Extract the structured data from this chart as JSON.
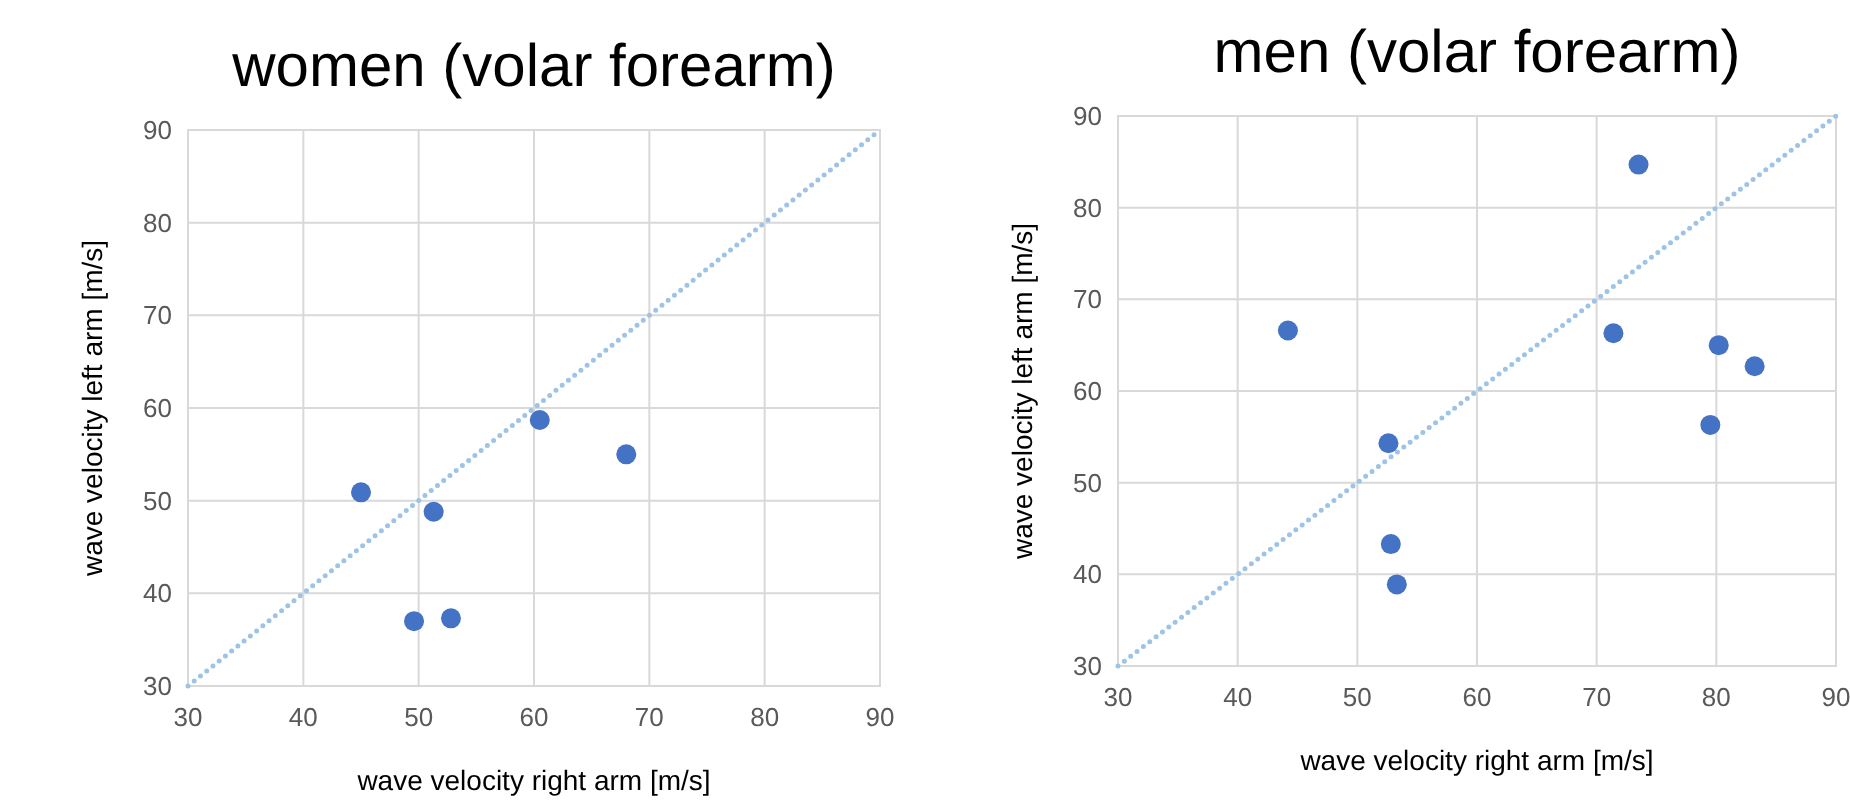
{
  "chart_data": [
    {
      "type": "scatter",
      "title": "women (volar forearm)",
      "xlabel": "wave velocity right arm [m/s]",
      "ylabel": "wave velocity left arm [m/s]",
      "xlim": [
        30,
        90
      ],
      "ylim": [
        30,
        90
      ],
      "xticks": [
        30,
        40,
        50,
        60,
        70,
        80,
        90
      ],
      "yticks": [
        30,
        40,
        50,
        60,
        70,
        80,
        90
      ],
      "grid": true,
      "series": [
        {
          "color": "#4472c4",
          "marker": "circle",
          "x": [
            45,
            51.3,
            49.6,
            52.8,
            60.5,
            68
          ],
          "values": [
            50.9,
            48.8,
            37,
            37.3,
            58.7,
            55
          ]
        },
        {
          "type": "line",
          "color": "#9dc3e6",
          "line_style": "dotted",
          "x": [
            30,
            90
          ],
          "values": [
            30,
            90
          ]
        }
      ]
    },
    {
      "type": "scatter",
      "title": "men (volar forearm)",
      "xlabel": "wave velocity right arm [m/s]",
      "ylabel": "wave velocity left arm [m/s]",
      "xlim": [
        30,
        90
      ],
      "ylim": [
        30,
        90
      ],
      "xticks": [
        30,
        40,
        50,
        60,
        70,
        80,
        90
      ],
      "yticks": [
        30,
        40,
        50,
        60,
        70,
        80,
        90
      ],
      "grid": true,
      "series": [
        {
          "color": "#4472c4",
          "marker": "circle",
          "x": [
            44.2,
            73.5,
            52.6,
            52.8,
            53.3,
            71.4,
            80.2,
            83.2,
            79.5
          ],
          "values": [
            66.6,
            84.7,
            54.3,
            43.3,
            38.9,
            66.3,
            65,
            62.7,
            56.3
          ]
        },
        {
          "type": "line",
          "color": "#9dc3e6",
          "line_style": "dotted",
          "x": [
            30,
            90
          ],
          "values": [
            30,
            90
          ]
        }
      ]
    }
  ]
}
